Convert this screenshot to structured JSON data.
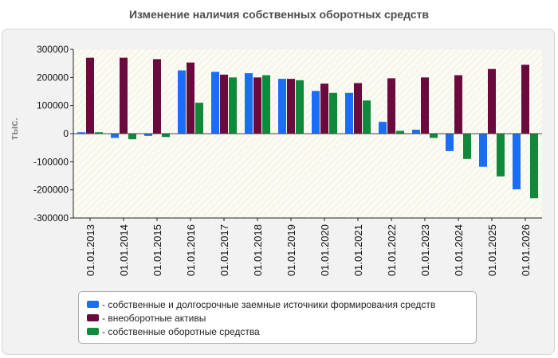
{
  "chart_data": {
    "type": "bar",
    "title": "Изменение наличия собственных оборотных средств",
    "ylabel": "тыс.",
    "xlabel": "",
    "ylim": [
      -300000,
      300000
    ],
    "yticks": [
      300000,
      200000,
      100000,
      0,
      -100000,
      -200000,
      -300000
    ],
    "grid": false,
    "legend_position": "bottom",
    "categories": [
      "01.01.2013",
      "01.01.2014",
      "01.01.2015",
      "01.01.2016",
      "01.01.2017",
      "01.01.2018",
      "01.01.2019",
      "01.01.2020",
      "01.01.2021",
      "01.01.2022",
      "01.01.2023",
      "01.01.2024",
      "01.01.2025",
      "01.01.2026"
    ],
    "series": [
      {
        "name": "- собственные и долгосрочные заемные источники формирования средств",
        "color": "#1a6ef5",
        "values": [
          5000,
          -15000,
          -8000,
          225000,
          220000,
          215000,
          195000,
          152000,
          145000,
          42000,
          14000,
          -62000,
          -118000,
          -198000
        ]
      },
      {
        "name": "- внеоборотные активы",
        "color": "#6b0a3c",
        "values": [
          270000,
          270000,
          265000,
          253000,
          210000,
          200000,
          195000,
          178000,
          180000,
          197000,
          200000,
          208000,
          230000,
          245000
        ]
      },
      {
        "name": "- собственные оборотные средства",
        "color": "#0f8a3b",
        "values": [
          5000,
          -20000,
          -12000,
          110000,
          200000,
          208000,
          190000,
          145000,
          118000,
          10000,
          -15000,
          -90000,
          -152000,
          -230000
        ]
      }
    ]
  }
}
